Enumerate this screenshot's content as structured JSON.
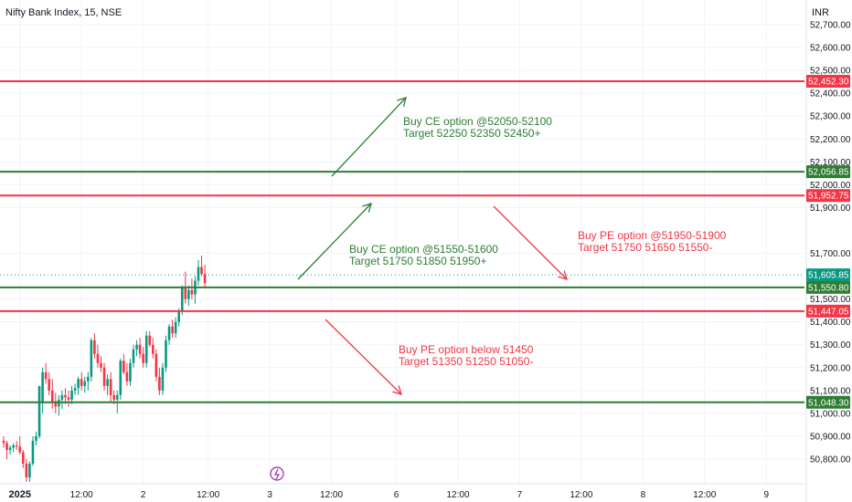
{
  "header": {
    "symbol": "Nifty Bank Index, 15, NSE",
    "currency": "INR"
  },
  "colors": {
    "green": "#2e7d32",
    "red": "#f23645",
    "upCandle": "#089981",
    "downCandle": "#f23645",
    "grid": "#f0f3fa"
  },
  "chart_data": {
    "type": "candlestick",
    "ylim": [
      50700,
      52770
    ],
    "yticks": [
      {
        "v": 52700,
        "t": "52,700.00"
      },
      {
        "v": 52600,
        "t": "52,600.00"
      },
      {
        "v": 52500,
        "t": "52,500.00"
      },
      {
        "v": 52400,
        "t": "52,400.00"
      },
      {
        "v": 52300,
        "t": "52,300.00"
      },
      {
        "v": 52200,
        "t": "52,200.00"
      },
      {
        "v": 52100,
        "t": "52,100.00"
      },
      {
        "v": 52000,
        "t": "52,000.00"
      },
      {
        "v": 51900,
        "t": "51,900.00"
      },
      {
        "v": 51700,
        "t": "51,700.00"
      },
      {
        "v": 51500,
        "t": "51,500.00"
      },
      {
        "v": 51400,
        "t": "51,400.00"
      },
      {
        "v": 51300,
        "t": "51,300.00"
      },
      {
        "v": 51200,
        "t": "51,200.00"
      },
      {
        "v": 51100,
        "t": "51,100.00"
      },
      {
        "v": 51000,
        "t": "51,000.00"
      },
      {
        "v": 50900,
        "t": "50,900.00"
      },
      {
        "v": 50800,
        "t": "50,800.00"
      }
    ],
    "xticks": [
      {
        "i": 5,
        "t": "2025",
        "bold": true
      },
      {
        "i": 24,
        "t": "12:00"
      },
      {
        "i": 43,
        "t": "2"
      },
      {
        "i": 63,
        "t": "12:00"
      },
      {
        "i": 82,
        "t": "3"
      },
      {
        "i": 101,
        "t": "12:00"
      },
      {
        "i": 121,
        "t": "6"
      },
      {
        "i": 140,
        "t": "12:00"
      },
      {
        "i": 159,
        "t": "7"
      },
      {
        "i": 178,
        "t": "12:00"
      },
      {
        "i": 197,
        "t": "8"
      },
      {
        "i": 216,
        "t": "12:00"
      },
      {
        "i": 235,
        "t": "9"
      }
    ],
    "candles": [
      [
        50880,
        50900,
        50850,
        50870
      ],
      [
        50870,
        50880,
        50800,
        50840
      ],
      [
        50840,
        50860,
        50820,
        50850
      ],
      [
        50850,
        50870,
        50830,
        50860
      ],
      [
        50860,
        50880,
        50840,
        50855
      ],
      [
        50855,
        50900,
        50820,
        50830
      ],
      [
        50830,
        50840,
        50760,
        50780
      ],
      [
        50780,
        50800,
        50700,
        50720
      ],
      [
        50720,
        50790,
        50700,
        50780
      ],
      [
        50780,
        50900,
        50770,
        50880
      ],
      [
        50880,
        50920,
        50860,
        50900
      ],
      [
        50900,
        51100,
        50890,
        51120
      ],
      [
        51050,
        51200,
        51000,
        51180
      ],
      [
        51180,
        51220,
        51130,
        51150
      ],
      [
        51150,
        51180,
        51080,
        51100
      ],
      [
        51100,
        51150,
        51020,
        51050
      ],
      [
        51050,
        51090,
        51000,
        51030
      ],
      [
        51030,
        51080,
        50990,
        51060
      ],
      [
        51060,
        51100,
        51020,
        51080
      ],
      [
        51080,
        51110,
        51040,
        51070
      ],
      [
        51070,
        51100,
        51030,
        51060
      ],
      [
        51060,
        51120,
        51040,
        51100
      ],
      [
        51100,
        51130,
        51080,
        51110
      ],
      [
        51110,
        51160,
        51080,
        51150
      ],
      [
        51150,
        51180,
        51100,
        51120
      ],
      [
        51120,
        51160,
        51090,
        51140
      ],
      [
        51140,
        51180,
        51100,
        51160
      ],
      [
        51160,
        51330,
        51140,
        51320
      ],
      [
        51320,
        51350,
        51240,
        51260
      ],
      [
        51260,
        51300,
        51200,
        51220
      ],
      [
        51220,
        51250,
        51180,
        51200
      ],
      [
        51200,
        51220,
        51100,
        51120
      ],
      [
        51120,
        51170,
        51080,
        51150
      ],
      [
        51150,
        51180,
        51050,
        51080
      ],
      [
        51080,
        51100,
        51040,
        51060
      ],
      [
        51060,
        51100,
        51000,
        51080
      ],
      [
        51080,
        51240,
        51060,
        51230
      ],
      [
        51230,
        51260,
        51170,
        51180
      ],
      [
        51180,
        51220,
        51120,
        51140
      ],
      [
        51140,
        51240,
        51120,
        51220
      ],
      [
        51220,
        51300,
        51200,
        51280
      ],
      [
        51280,
        51320,
        51250,
        51300
      ],
      [
        51300,
        51330,
        51240,
        51260
      ],
      [
        51260,
        51290,
        51200,
        51220
      ],
      [
        51220,
        51360,
        51200,
        51340
      ],
      [
        51340,
        51360,
        51290,
        51300
      ],
      [
        51300,
        51330,
        51240,
        51260
      ],
      [
        51260,
        51280,
        51140,
        51160
      ],
      [
        51160,
        51200,
        51080,
        51100
      ],
      [
        51100,
        51220,
        51080,
        51200
      ],
      [
        51200,
        51340,
        51180,
        51320
      ],
      [
        51320,
        51390,
        51300,
        51380
      ],
      [
        51380,
        51410,
        51330,
        51350
      ],
      [
        51350,
        51420,
        51330,
        51400
      ],
      [
        51400,
        51460,
        51380,
        51450
      ],
      [
        51450,
        51560,
        51430,
        51550
      ],
      [
        51550,
        51620,
        51480,
        51500
      ],
      [
        51500,
        51560,
        51470,
        51540
      ],
      [
        51540,
        51590,
        51500,
        51520
      ],
      [
        51520,
        51600,
        51480,
        51580
      ],
      [
        51580,
        51670,
        51560,
        51640
      ],
      [
        51640,
        51690,
        51600,
        51610
      ],
      [
        51610,
        51650,
        51550,
        51570
      ]
    ],
    "levels": [
      {
        "price": 52452.3,
        "label": "52,452.30",
        "color": "red"
      },
      {
        "price": 52056.85,
        "label": "52,056.85",
        "color": "green"
      },
      {
        "price": 51952.75,
        "label": "51,952.75",
        "color": "red"
      },
      {
        "price": 51550.8,
        "label": "51,550.80",
        "color": "green"
      },
      {
        "price": 51447.05,
        "label": "51,447.05",
        "color": "red"
      },
      {
        "price": 51048.3,
        "label": "51,048.30",
        "color": "green"
      }
    ],
    "last_price": {
      "price": 51605.85,
      "label": "51,605.85"
    },
    "annotations": [
      {
        "lines": [
          "Buy CE option @52050-52100",
          "Target 52250 52350 52450+"
        ],
        "color": "green"
      },
      {
        "lines": [
          "Buy CE option @51550-51600",
          "Target 51750 51850 51950+"
        ],
        "color": "green"
      },
      {
        "lines": [
          "Buy PE option @51950-51900",
          "Target 51750 51650 51550-"
        ],
        "color": "red"
      },
      {
        "lines": [
          "Buy PE option below 51450",
          "Target 51350 51250 51050-"
        ],
        "color": "red"
      }
    ]
  }
}
